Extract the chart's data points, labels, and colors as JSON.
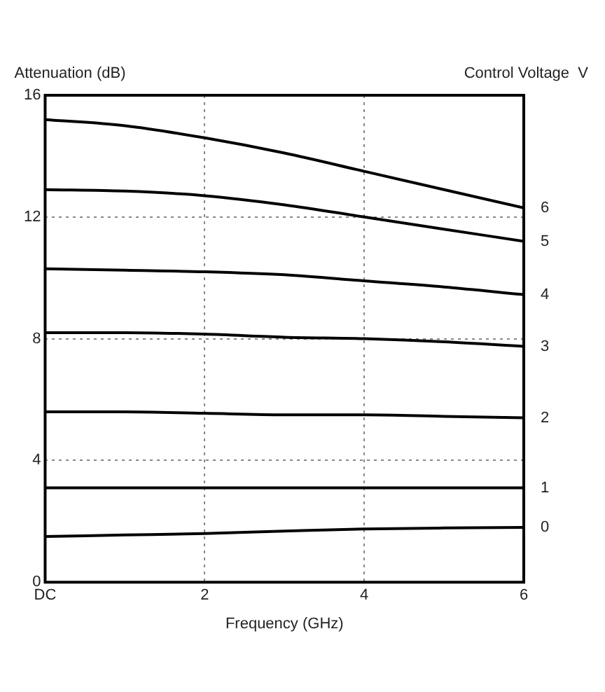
{
  "chart_data": {
    "type": "line",
    "ylabel": "Attenuation (dB)",
    "xlabel": "Frequency (GHz)",
    "legend_title": "Control Voltage  V",
    "x": [
      0,
      1,
      2,
      3,
      4,
      5,
      6
    ],
    "series": [
      {
        "name": "0",
        "color": "#000000",
        "values": [
          1.5,
          1.55,
          1.6,
          1.68,
          1.75,
          1.78,
          1.8
        ]
      },
      {
        "name": "1",
        "color": "#000000",
        "values": [
          3.1,
          3.1,
          3.1,
          3.1,
          3.1,
          3.1,
          3.1
        ]
      },
      {
        "name": "2",
        "color": "#000000",
        "values": [
          5.6,
          5.6,
          5.55,
          5.5,
          5.5,
          5.45,
          5.4
        ]
      },
      {
        "name": "3",
        "color": "#000000",
        "values": [
          8.2,
          8.2,
          8.15,
          8.05,
          8.0,
          7.9,
          7.75
        ]
      },
      {
        "name": "4",
        "color": "#000000",
        "values": [
          10.3,
          10.25,
          10.2,
          10.1,
          9.9,
          9.7,
          9.45
        ]
      },
      {
        "name": "5",
        "color": "#000000",
        "values": [
          12.9,
          12.85,
          12.7,
          12.4,
          12.0,
          11.6,
          11.2
        ]
      },
      {
        "name": "6",
        "color": "#000000",
        "values": [
          15.2,
          15.0,
          14.6,
          14.1,
          13.5,
          12.9,
          12.3
        ]
      }
    ],
    "xlim": [
      0,
      6
    ],
    "xticks": [
      {
        "value": 0,
        "label": "DC"
      },
      2,
      4,
      6
    ],
    "ylim": [
      0,
      16
    ],
    "yticks": [
      0,
      4,
      8,
      12,
      16
    ],
    "grid": true,
    "legend": false,
    "marker": "none",
    "line_style": "solid"
  }
}
